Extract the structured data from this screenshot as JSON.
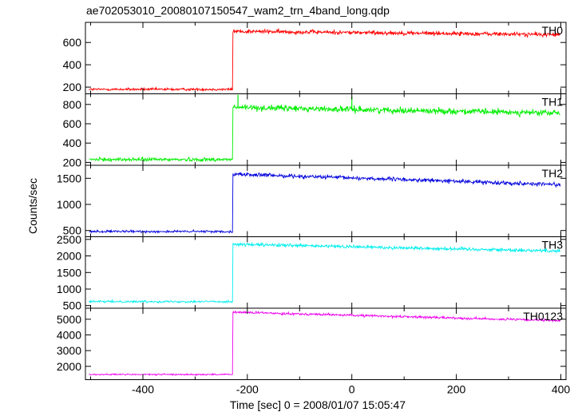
{
  "title": "ae702053010_20080107150547_wam2_trn_4band_long.qdp",
  "xlabel": "Time [sec] 0 = 2008/01/07 15:05:47",
  "ylabel": "Counts/sec",
  "x_ticks": [
    -400,
    -200,
    0,
    200,
    400
  ],
  "colors": {
    "TH0": "#ff0000",
    "TH1": "#00ee00",
    "TH2": "#0000dd",
    "TH3": "#00eeee",
    "TH0123": "#ee00ee"
  },
  "chart_data": {
    "type": "line",
    "title": "ae702053010_20080107150547_wam2_trn_4band_long.qdp",
    "xlabel": "Time [sec] 0 = 2008/01/07 15:05:47",
    "ylabel": "Counts/sec",
    "xlim": [
      -510,
      410
    ],
    "grid": false,
    "onset_time": -228,
    "panels": [
      {
        "name": "TH0",
        "ylim": [
          140,
          780
        ],
        "yticks": [
          200,
          400,
          600
        ],
        "pre_level": 180,
        "peak": 700,
        "end_level": 670,
        "noise": 18,
        "spikes": []
      },
      {
        "name": "TH1",
        "ylim": [
          170,
          910
        ],
        "yticks": [
          200,
          400,
          600,
          800
        ],
        "pre_level": 230,
        "peak": 770,
        "end_level": 710,
        "noise": 30,
        "spikes": [
          {
            "t": -218,
            "v": 900
          },
          {
            "t": 0,
            "v": 880
          }
        ]
      },
      {
        "name": "TH2",
        "ylim": [
          380,
          1750
        ],
        "yticks": [
          500,
          1000,
          1500
        ],
        "pre_level": 480,
        "peak": 1580,
        "end_level": 1380,
        "noise": 35,
        "spikes": []
      },
      {
        "name": "TH3",
        "ylim": [
          420,
          2580
        ],
        "yticks": [
          500,
          1000,
          1500,
          2000,
          2500
        ],
        "pre_level": 620,
        "peak": 2350,
        "end_level": 2150,
        "noise": 50,
        "spikes": []
      },
      {
        "name": "TH0123",
        "ylim": [
          1150,
          5700
        ],
        "yticks": [
          2000,
          3000,
          4000,
          5000
        ],
        "pre_level": 1480,
        "peak": 5450,
        "end_level": 4900,
        "noise": 70,
        "spikes": []
      }
    ]
  }
}
